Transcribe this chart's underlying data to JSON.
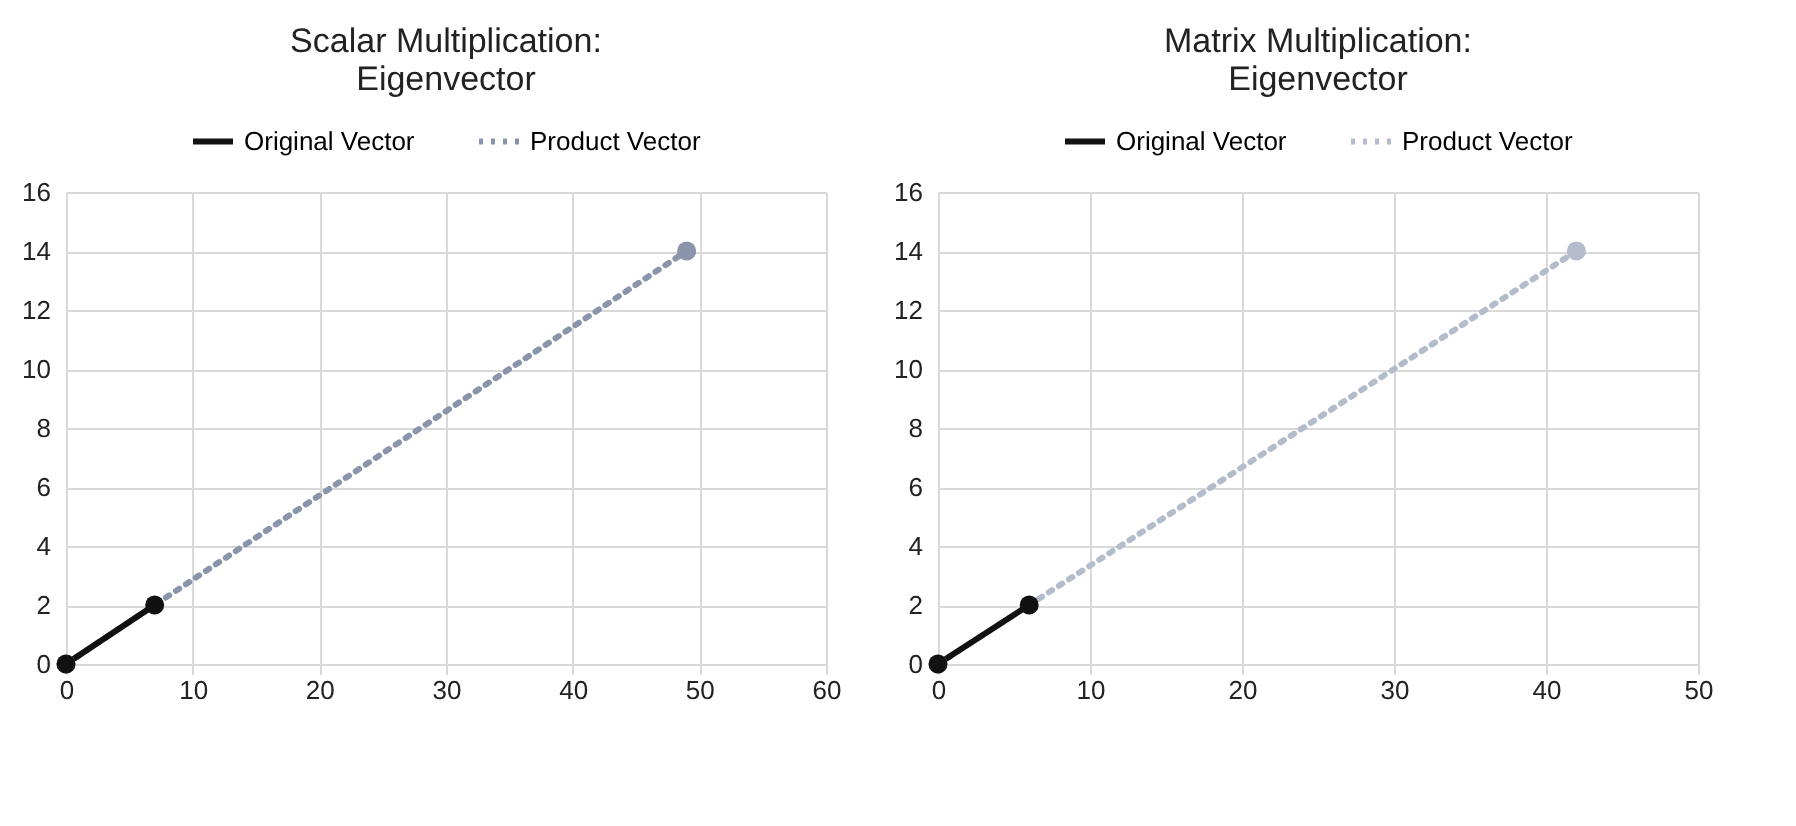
{
  "chart_data": [
    {
      "type": "line",
      "title": "Scalar Multiplication:\nEigenvector",
      "marker": "circle",
      "grid": true,
      "legend": "top",
      "xlim": [
        0,
        60
      ],
      "xticks": [
        0,
        10,
        20,
        30,
        40,
        50,
        60
      ],
      "ylim": [
        0,
        16
      ],
      "yticks": [
        0,
        2,
        4,
        6,
        8,
        10,
        12,
        14,
        16
      ],
      "series": [
        {
          "name": "Original Vector",
          "color": "#111111",
          "line_style": "solid",
          "x": [
            0,
            7
          ],
          "values": [
            0,
            2
          ]
        },
        {
          "name": "Product Vector",
          "color": "#8a94ab",
          "line_style": "dotted",
          "x": [
            0,
            49
          ],
          "values": [
            0,
            14
          ]
        }
      ]
    },
    {
      "type": "line",
      "title": "Matrix Multiplication:\nEigenvector",
      "marker": "circle",
      "grid": true,
      "legend": "top",
      "xlim": [
        0,
        50
      ],
      "xticks": [
        0,
        10,
        20,
        30,
        40,
        50
      ],
      "ylim": [
        0,
        16
      ],
      "yticks": [
        0,
        2,
        4,
        6,
        8,
        10,
        12,
        14,
        16
      ],
      "series": [
        {
          "name": "Original Vector",
          "color": "#111111",
          "line_style": "solid",
          "x": [
            0,
            6
          ],
          "values": [
            0,
            2
          ]
        },
        {
          "name": "Product Vector",
          "color": "#b4bccb",
          "line_style": "dotted",
          "x": [
            0,
            42
          ],
          "values": [
            0,
            14
          ]
        }
      ]
    }
  ]
}
